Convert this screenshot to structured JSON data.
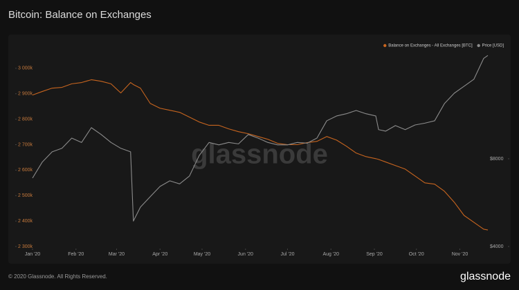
{
  "chart_data": {
    "type": "line",
    "title": "Bitcoin: Balance on Exchanges",
    "watermark": "glassnode",
    "footer": "© 2020 Glassnode. All Rights Reserved.",
    "logo": "glassnode",
    "legend": "top-right",
    "grid": false,
    "x": [
      "2020-01-01",
      "2020-01-08",
      "2020-01-15",
      "2020-01-22",
      "2020-01-29",
      "2020-02-05",
      "2020-02-12",
      "2020-02-19",
      "2020-02-26",
      "2020-03-04",
      "2020-03-11",
      "2020-03-13",
      "2020-03-18",
      "2020-03-25",
      "2020-04-01",
      "2020-04-08",
      "2020-04-15",
      "2020-04-22",
      "2020-04-29",
      "2020-05-06",
      "2020-05-13",
      "2020-05-20",
      "2020-05-27",
      "2020-06-03",
      "2020-06-10",
      "2020-06-17",
      "2020-06-24",
      "2020-07-01",
      "2020-07-08",
      "2020-07-15",
      "2020-07-22",
      "2020-07-29",
      "2020-08-05",
      "2020-08-12",
      "2020-08-19",
      "2020-08-26",
      "2020-09-02",
      "2020-09-04",
      "2020-09-09",
      "2020-09-16",
      "2020-09-23",
      "2020-09-30",
      "2020-10-07",
      "2020-10-14",
      "2020-10-21",
      "2020-10-28",
      "2020-11-04",
      "2020-11-11",
      "2020-11-18",
      "2020-11-21"
    ],
    "xlim": [
      "2020-01-01",
      "2020-11-21"
    ],
    "xticks": [
      {
        "value": "2020-01-01",
        "label": "Jan '20"
      },
      {
        "value": "2020-02-01",
        "label": "Feb '20"
      },
      {
        "value": "2020-03-01",
        "label": "Mar '20"
      },
      {
        "value": "2020-04-01",
        "label": "Apr '20"
      },
      {
        "value": "2020-05-01",
        "label": "May '20"
      },
      {
        "value": "2020-06-01",
        "label": "Jun '20"
      },
      {
        "value": "2020-07-01",
        "label": "Jul '20"
      },
      {
        "value": "2020-08-01",
        "label": "Aug '20"
      },
      {
        "value": "2020-09-01",
        "label": "Sep '20"
      },
      {
        "value": "2020-10-01",
        "label": "Oct '20"
      },
      {
        "value": "2020-11-01",
        "label": "Nov '20"
      }
    ],
    "ylim": [
      2300000,
      3100000
    ],
    "yticks": [
      {
        "value": 2300000,
        "label": "2 300k"
      },
      {
        "value": 2400000,
        "label": "2 400k"
      },
      {
        "value": 2500000,
        "label": "2 500k"
      },
      {
        "value": 2600000,
        "label": "2 600k"
      },
      {
        "value": 2700000,
        "label": "2 700k"
      },
      {
        "value": 2800000,
        "label": "2 800k"
      },
      {
        "value": 2900000,
        "label": "2 900k"
      },
      {
        "value": 3000000,
        "label": "3 000k"
      }
    ],
    "y2lim": [
      4000,
      20000
    ],
    "y2log": true,
    "y2ticks": [
      {
        "value": 4000,
        "label": "$4000"
      },
      {
        "value": 8000,
        "label": "$8000"
      }
    ],
    "series": [
      {
        "name": "Balance on Exchanges - All Exchanges [BTC]",
        "color": "#c8651f",
        "values": [
          2895000,
          2909000,
          2922000,
          2925000,
          2939000,
          2944000,
          2955000,
          2949000,
          2939000,
          2903000,
          2944000,
          2936000,
          2922000,
          2862000,
          2843000,
          2835000,
          2827000,
          2808000,
          2789000,
          2776000,
          2776000,
          2762000,
          2751000,
          2743000,
          2732000,
          2721000,
          2705000,
          2700000,
          2700000,
          2708000,
          2713000,
          2732000,
          2718000,
          2694000,
          2667000,
          2653000,
          2645000,
          2642000,
          2632000,
          2618000,
          2604000,
          2577000,
          2550000,
          2545000,
          2517000,
          2474000,
          2422000,
          2395000,
          2368000,
          2365000
        ]
      },
      {
        "name": "Price [USD]",
        "color": "#8c8c8c",
        "axis": "y2",
        "values": [
          6870,
          7800,
          8450,
          8690,
          9420,
          9100,
          10230,
          9690,
          9100,
          8690,
          8450,
          4890,
          5460,
          5930,
          6430,
          6720,
          6560,
          6980,
          8210,
          9100,
          8930,
          9100,
          9000,
          9690,
          9420,
          9100,
          8930,
          8930,
          9100,
          9050,
          9420,
          10800,
          11220,
          11420,
          11720,
          11420,
          11220,
          10070,
          9950,
          10400,
          10070,
          10450,
          10600,
          10800,
          12370,
          13430,
          14190,
          14990,
          17680,
          18100
        ]
      }
    ]
  }
}
